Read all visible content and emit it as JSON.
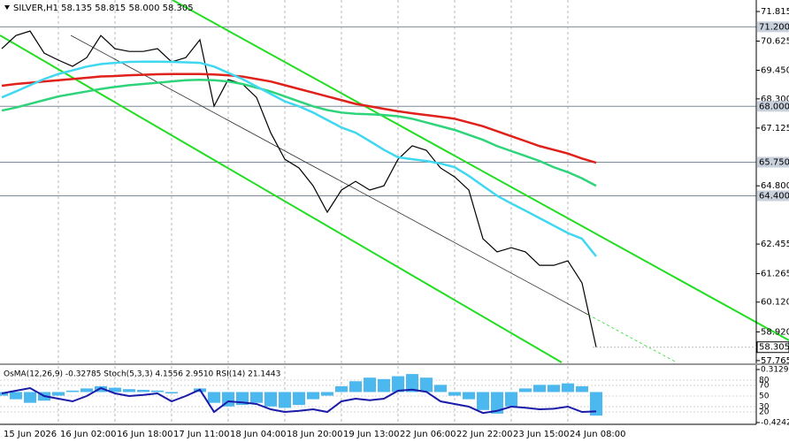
{
  "chart_data": {
    "type": "line",
    "title": "SILVER,H1  58.135 58.815 58.000 58.305",
    "categories": [
      "15 Jun 2026",
      null,
      null,
      null,
      "16 Jun 02:00",
      null,
      null,
      null,
      "16 Jun 18:00",
      null,
      null,
      null,
      "17 Jun 11:00",
      null,
      null,
      null,
      "18 Jun 04:00",
      null,
      null,
      null,
      "18 Jun 20:00",
      null,
      null,
      null,
      "19 Jun 13:00",
      null,
      null,
      null,
      "22 Jun 06:00",
      null,
      null,
      null,
      "22 Jun 22:00",
      null,
      null,
      null,
      "23 Jun 15:00",
      null,
      null,
      null,
      "24 Jun 08:00",
      null,
      null
    ],
    "series": [
      {
        "color": "#000000",
        "values": [
          70.32,
          70.85,
          71.03,
          70.14,
          69.86,
          69.61,
          69.96,
          70.85,
          70.32,
          70.21,
          70.21,
          70.32,
          69.79,
          69.96,
          70.68,
          68.01,
          69.08,
          68.9,
          68.36,
          66.94,
          65.87,
          65.52,
          64.8,
          63.74,
          64.63,
          64.98,
          64.63,
          64.8,
          65.87,
          66.41,
          66.23,
          65.52,
          65.16,
          64.63,
          62.67,
          62.14,
          62.31,
          62.14,
          61.6,
          61.6,
          61.78,
          60.89,
          58.305
        ]
      },
      {
        "color": "#e0201a",
        "values": [
          68.83,
          68.9,
          68.95,
          69.0,
          69.05,
          69.1,
          69.15,
          69.2,
          69.22,
          69.25,
          69.27,
          69.29,
          69.3,
          69.3,
          69.3,
          69.28,
          69.25,
          69.2,
          69.1,
          69.0,
          68.85,
          68.7,
          68.55,
          68.4,
          68.25,
          68.1,
          68.0,
          67.9,
          67.8,
          67.72,
          67.65,
          67.58,
          67.5,
          67.35,
          67.2,
          67.0,
          66.8,
          66.6,
          66.4,
          66.25,
          66.1,
          65.9,
          65.73
        ]
      },
      {
        "color": "#2ed47a",
        "values": [
          67.83,
          67.95,
          68.1,
          68.25,
          68.4,
          68.5,
          68.6,
          68.7,
          68.78,
          68.85,
          68.9,
          68.95,
          69.0,
          69.05,
          69.07,
          69.05,
          69.0,
          68.9,
          68.75,
          68.6,
          68.4,
          68.2,
          68.0,
          67.85,
          67.75,
          67.7,
          67.68,
          67.65,
          67.6,
          67.5,
          67.35,
          67.2,
          67.05,
          66.85,
          66.65,
          66.4,
          66.2,
          66.0,
          65.8,
          65.55,
          65.35,
          65.1,
          64.8
        ]
      },
      {
        "color": "#40d8f0",
        "values": [
          68.36,
          68.6,
          68.85,
          69.1,
          69.3,
          69.45,
          69.6,
          69.7,
          69.75,
          69.79,
          69.8,
          69.8,
          69.79,
          69.77,
          69.75,
          69.6,
          69.35,
          69.1,
          68.8,
          68.5,
          68.2,
          68.0,
          67.75,
          67.45,
          67.15,
          66.94,
          66.6,
          66.25,
          65.95,
          65.87,
          65.8,
          65.7,
          65.55,
          65.2,
          64.8,
          64.4,
          64.09,
          63.8,
          63.5,
          63.2,
          62.9,
          62.67,
          61.96
        ]
      }
    ],
    "ylim": [
      57.62,
      72.28
    ],
    "yticks": [
      71.815,
      70.625,
      {
        "value": 69.45,
        "label": "69.450"
      },
      {
        "value": 68.3,
        "label": "68.300"
      },
      67.125,
      {
        "value": 64.8,
        "label": "64.800"
      },
      62.455,
      61.265,
      {
        "value": 60.12,
        "label": "60.120"
      },
      {
        "value": 58.92,
        "label": "58.920"
      },
      57.765
    ],
    "levels": [
      {
        "value": 71.2,
        "label": "71.200"
      },
      {
        "value": 68,
        "label": "68.000"
      },
      {
        "value": 65.75,
        "label": "65.750"
      },
      {
        "value": 64.4,
        "label": "64.400"
      }
    ],
    "last_price": 58.305,
    "indicator": {
      "title": "OsMA(12,26,9) -0.32785  Stoch(5,3,3) 4.1556 2.9510  RSI(14) 21.1443",
      "osma": {
        "color": "#4cb8f0",
        "values": [
          -0.05,
          -0.1,
          -0.15,
          -0.12,
          -0.05,
          0.02,
          0.05,
          0.08,
          0.06,
          0.04,
          0.03,
          0.02,
          -0.02,
          0.0,
          0.05,
          -0.15,
          -0.2,
          -0.18,
          -0.15,
          -0.2,
          -0.22,
          -0.18,
          -0.1,
          -0.05,
          0.08,
          0.15,
          0.2,
          0.18,
          0.22,
          0.25,
          0.2,
          0.1,
          -0.05,
          -0.1,
          -0.25,
          -0.3,
          -0.2,
          0.05,
          0.1,
          0.1,
          0.12,
          0.08,
          -0.32785
        ]
      },
      "ylim": [
        -0.42422,
        0.31293
      ],
      "yticks": [
        0.31293,
        -0.42422
      ],
      "rsi": {
        "color": "#1a1aa8",
        "values": [
          55,
          60,
          65,
          50,
          45,
          40,
          50,
          65,
          55,
          50,
          52,
          55,
          40,
          50,
          62,
          20,
          40,
          38,
          35,
          25,
          20,
          22,
          25,
          20,
          40,
          45,
          42,
          45,
          60,
          62,
          58,
          40,
          35,
          30,
          18,
          22,
          30,
          28,
          25,
          26,
          30,
          20,
          21.1443
        ]
      },
      "y2lim": [
        0,
        100
      ],
      "y2ticks": [
        80,
        70,
        50,
        30,
        20
      ]
    }
  }
}
